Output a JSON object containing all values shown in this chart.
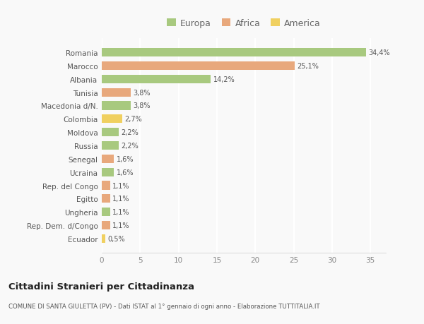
{
  "categories": [
    "Romania",
    "Marocco",
    "Albania",
    "Tunisia",
    "Macedonia d/N.",
    "Colombia",
    "Moldova",
    "Russia",
    "Senegal",
    "Ucraina",
    "Rep. del Congo",
    "Egitto",
    "Ungheria",
    "Rep. Dem. d/Congo",
    "Ecuador"
  ],
  "values": [
    34.4,
    25.1,
    14.2,
    3.8,
    3.8,
    2.7,
    2.2,
    2.2,
    1.6,
    1.6,
    1.1,
    1.1,
    1.1,
    1.1,
    0.5
  ],
  "labels": [
    "34,4%",
    "25,1%",
    "14,2%",
    "3,8%",
    "3,8%",
    "2,7%",
    "2,2%",
    "2,2%",
    "1,6%",
    "1,6%",
    "1,1%",
    "1,1%",
    "1,1%",
    "1,1%",
    "0,5%"
  ],
  "colors": [
    "#a8c97f",
    "#e8a87c",
    "#a8c97f",
    "#e8a87c",
    "#a8c97f",
    "#f0d060",
    "#a8c97f",
    "#a8c97f",
    "#e8a87c",
    "#a8c97f",
    "#e8a87c",
    "#e8a87c",
    "#a8c97f",
    "#e8a87c",
    "#f0d060"
  ],
  "legend_labels": [
    "Europa",
    "Africa",
    "America"
  ],
  "legend_colors": [
    "#a8c97f",
    "#e8a87c",
    "#f0d060"
  ],
  "title": "Cittadini Stranieri per Cittadinanza",
  "subtitle": "COMUNE DI SANTA GIULETTA (PV) - Dati ISTAT al 1° gennaio di ogni anno - Elaborazione TUTTITALIA.IT",
  "xlim": [
    0,
    37
  ],
  "xticks": [
    0,
    5,
    10,
    15,
    20,
    25,
    30,
    35
  ],
  "background_color": "#f9f9f9",
  "grid_color": "#e8e8e8",
  "bar_height": 0.65
}
